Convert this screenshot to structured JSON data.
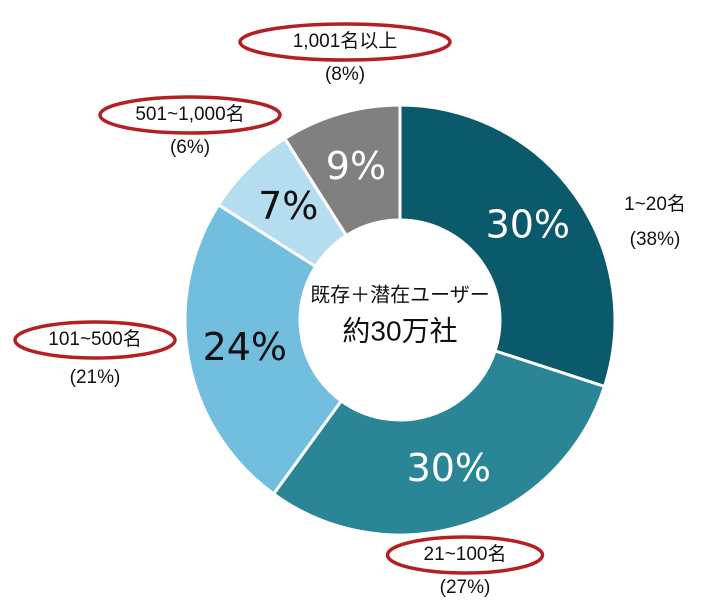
{
  "chart_data": {
    "type": "donut",
    "center_text": [
      "既存＋潜在ユーザー",
      "約30万社"
    ],
    "categories": [
      "1~20名",
      "21~100名",
      "101~500名",
      "501~1,000名",
      "1,001名以上"
    ],
    "category_shares": [
      "(38%)",
      "(27%)",
      "(21%)",
      "(6%)",
      "(8%)"
    ],
    "values": [
      30,
      30,
      24,
      7,
      9
    ],
    "value_labels": [
      "30%",
      "30%",
      "24%",
      "7%",
      "9%"
    ],
    "colors": [
      "#0b5a6b",
      "#2a8596",
      "#72bedf",
      "#b5ddf0",
      "#808080"
    ],
    "value_label_colors": [
      "#ffffff",
      "#ffffff",
      "#111111",
      "#111111",
      "#ffffff"
    ],
    "highlighted": [
      false,
      true,
      true,
      true,
      true
    ],
    "highlight_color": "#b51f24"
  }
}
